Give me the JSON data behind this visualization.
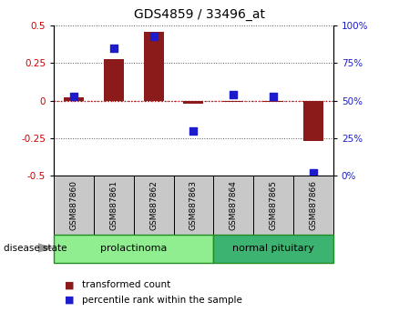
{
  "title": "GDS4859 / 33496_at",
  "samples": [
    "GSM887860",
    "GSM887861",
    "GSM887862",
    "GSM887863",
    "GSM887864",
    "GSM887865",
    "GSM887866"
  ],
  "transformed_count": [
    0.02,
    0.28,
    0.46,
    -0.02,
    -0.01,
    -0.01,
    -0.27
  ],
  "percentile_rank": [
    53,
    85,
    93,
    30,
    54,
    53,
    2
  ],
  "ylim_left": [
    -0.5,
    0.5
  ],
  "ylim_right": [
    0,
    100
  ],
  "yticks_left": [
    -0.5,
    -0.25,
    0.0,
    0.25,
    0.5
  ],
  "yticks_right": [
    0,
    25,
    50,
    75,
    100
  ],
  "groups": [
    {
      "label": "prolactinoma",
      "indices": [
        0,
        1,
        2,
        3
      ],
      "color": "#90EE90",
      "edge_color": "#228B22"
    },
    {
      "label": "normal pituitary",
      "indices": [
        4,
        5,
        6
      ],
      "color": "#3CB371",
      "edge_color": "#228B22"
    }
  ],
  "disease_state_label": "disease state",
  "bar_color": "#8B1A1A",
  "dot_color": "#1C1CCD",
  "bar_width": 0.5,
  "legend_items": [
    {
      "label": "transformed count",
      "color": "#8B1A1A"
    },
    {
      "label": "percentile rank within the sample",
      "color": "#1C1CCD"
    }
  ],
  "background_color": "#ffffff",
  "sample_box_color": "#C8C8C8",
  "hline_color": "#CC0000",
  "left_tick_color": "#CC0000",
  "right_tick_color": "#1C1CCD"
}
